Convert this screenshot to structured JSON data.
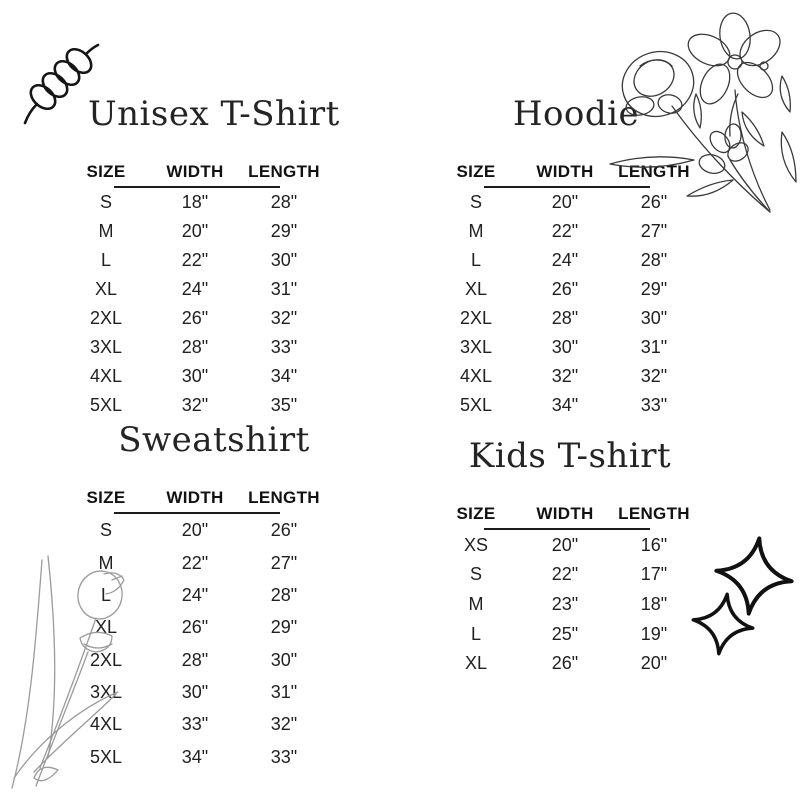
{
  "page": {
    "background": "#ffffff",
    "text_color": "#212121",
    "heading_color": "#242424",
    "line_color": "#1c1c1c",
    "sketch_gray": "#9b9b9b"
  },
  "decorations": [
    {
      "name": "spring-coil-doodle-icon",
      "style": "black line art"
    },
    {
      "name": "wildflower-line-art-icon",
      "style": "black line art"
    },
    {
      "name": "tulip-sketch-icon",
      "style": "light gray pencil sketch"
    },
    {
      "name": "sparkle-stars-icon",
      "style": "bold black outline"
    }
  ],
  "chart_data": [
    {
      "type": "table",
      "title": "Unisex T-Shirt",
      "columns": [
        "SIZE",
        "WIDTH",
        "LENGTH"
      ],
      "rows": [
        [
          "S",
          "18\"",
          "28\""
        ],
        [
          "M",
          "20\"",
          "29\""
        ],
        [
          "L",
          "22\"",
          "30\""
        ],
        [
          "XL",
          "24\"",
          "31\""
        ],
        [
          "2XL",
          "26\"",
          "32\""
        ],
        [
          "3XL",
          "28\"",
          "33\""
        ],
        [
          "4XL",
          "30\"",
          "34\""
        ],
        [
          "5XL",
          "32\"",
          "35\""
        ]
      ]
    },
    {
      "type": "table",
      "title": "Hoodie",
      "columns": [
        "SIZE",
        "WIDTH",
        "LENGTH"
      ],
      "rows": [
        [
          "S",
          "20\"",
          "26\""
        ],
        [
          "M",
          "22\"",
          "27\""
        ],
        [
          "L",
          "24\"",
          "28\""
        ],
        [
          "XL",
          "26\"",
          "29\""
        ],
        [
          "2XL",
          "28\"",
          "30\""
        ],
        [
          "3XL",
          "30\"",
          "31\""
        ],
        [
          "4XL",
          "32\"",
          "32\""
        ],
        [
          "5XL",
          "34\"",
          "33\""
        ]
      ]
    },
    {
      "type": "table",
      "title": "Sweatshirt",
      "columns": [
        "SIZE",
        "WIDTH",
        "LENGTH"
      ],
      "rows": [
        [
          "S",
          "20\"",
          "26\""
        ],
        [
          "M",
          "22\"",
          "27\""
        ],
        [
          "L",
          "24\"",
          "28\""
        ],
        [
          "XL",
          "26\"",
          "29\""
        ],
        [
          "2XL",
          "28\"",
          "30\""
        ],
        [
          "3XL",
          "30\"",
          "31\""
        ],
        [
          "4XL",
          "33\"",
          "32\""
        ],
        [
          "5XL",
          "34\"",
          "33\""
        ]
      ]
    },
    {
      "type": "table",
      "title": "Kids T-shirt",
      "columns": [
        "SIZE",
        "WIDTH",
        "LENGTH"
      ],
      "rows": [
        [
          "XS",
          "20\"",
          "16\""
        ],
        [
          "S",
          "22\"",
          "17\""
        ],
        [
          "M",
          "23\"",
          "18\""
        ],
        [
          "L",
          "25\"",
          "19\""
        ],
        [
          "XL",
          "26\"",
          "20\""
        ]
      ]
    }
  ]
}
